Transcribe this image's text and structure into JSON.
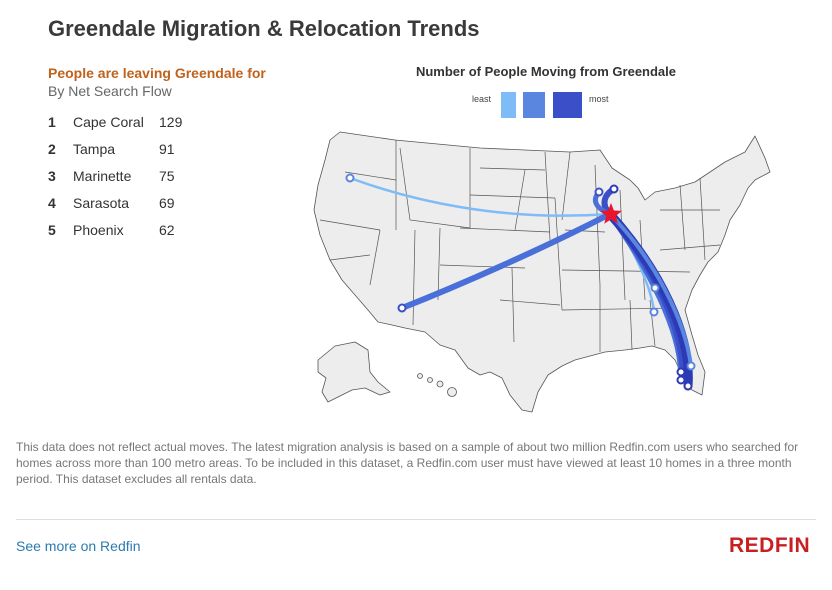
{
  "header": {
    "title": "Greendale Migration & Relocation Trends"
  },
  "ranking": {
    "subtitle": "People are leaving Greendale for",
    "note": "By Net Search Flow",
    "items": [
      {
        "rank": "1",
        "city": "Cape Coral",
        "count": "129"
      },
      {
        "rank": "2",
        "city": "Tampa",
        "count": "91"
      },
      {
        "rank": "3",
        "city": "Marinette",
        "count": "75"
      },
      {
        "rank": "4",
        "city": "Sarasota",
        "count": "69"
      },
      {
        "rank": "5",
        "city": "Phoenix",
        "count": "62"
      }
    ]
  },
  "map": {
    "title": "Number of People Moving from Greendale",
    "legend": {
      "least_label": "least",
      "most_label": "most",
      "colors": [
        "#7fbcf7",
        "#5a86e0",
        "#3a4fc8"
      ]
    },
    "origin_marker": "star-icon",
    "colors": {
      "state_fill": "#ededed",
      "state_border": "#555555",
      "origin": "#e8152c"
    }
  },
  "footer": {
    "disclaimer": "This data does not reflect actual moves. The latest migration analysis is based on a sample of about two million Redfin.com users who searched for homes across more than 100 metro areas. To be included in this dataset, a Redfin.com user must have viewed at least 10 homes in a three month period. This dataset excludes all rentals data.",
    "link_label": "See more on Redfin",
    "logo": "REDFIN"
  }
}
